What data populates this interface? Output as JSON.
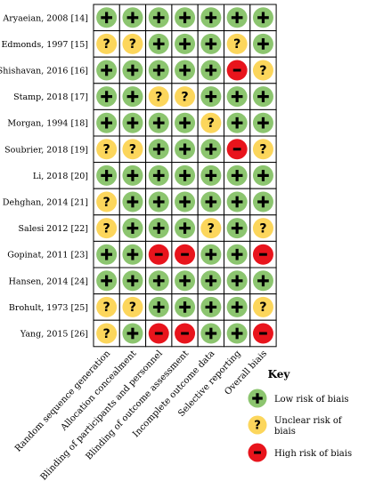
{
  "studies": [
    {
      "label": "Aryaeian, 2008 [14]",
      "ratings": [
        "low",
        "low",
        "low",
        "low",
        "low",
        "low",
        "low"
      ]
    },
    {
      "label": "Edmonds, 1997 [15]",
      "ratings": [
        "unclear",
        "unclear",
        "low",
        "low",
        "low",
        "unclear",
        "low"
      ]
    },
    {
      "label": "Shishavan, 2016 [16]",
      "ratings": [
        "low",
        "low",
        "low",
        "low",
        "low",
        "high",
        "unclear"
      ]
    },
    {
      "label": "Stamp, 2018 [17]",
      "ratings": [
        "low",
        "low",
        "unclear",
        "unclear",
        "low",
        "low",
        "low"
      ]
    },
    {
      "label": "Morgan, 1994 [18]",
      "ratings": [
        "low",
        "low",
        "low",
        "low",
        "unclear",
        "low",
        "low"
      ]
    },
    {
      "label": "Soubrier, 2018 [19]",
      "ratings": [
        "unclear",
        "unclear",
        "low",
        "low",
        "low",
        "high",
        "unclear"
      ]
    },
    {
      "label": "Li, 2018 [20]",
      "ratings": [
        "low",
        "low",
        "low",
        "low",
        "low",
        "low",
        "low"
      ]
    },
    {
      "label": "Dehghan, 2014 [21]",
      "ratings": [
        "unclear",
        "low",
        "low",
        "low",
        "low",
        "low",
        "low"
      ]
    },
    {
      "label": "Salesi 2012 [22]",
      "ratings": [
        "unclear",
        "low",
        "low",
        "low",
        "unclear",
        "low",
        "unclear"
      ]
    },
    {
      "label": "Gopinat, 2011 [23]",
      "ratings": [
        "low",
        "low",
        "high",
        "high",
        "low",
        "low",
        "high"
      ]
    },
    {
      "label": "Hansen, 2014 [24]",
      "ratings": [
        "low",
        "low",
        "low",
        "low",
        "low",
        "low",
        "low"
      ]
    },
    {
      "label": "Brohult, 1973 [25]",
      "ratings": [
        "unclear",
        "unclear",
        "low",
        "low",
        "low",
        "low",
        "unclear"
      ]
    },
    {
      "label": "Yang, 2015 [26]",
      "ratings": [
        "unclear",
        "low",
        "high",
        "high",
        "low",
        "low",
        "high"
      ]
    }
  ],
  "domains": [
    "Random sequence generation",
    "Allocation concealment",
    "Blinding of participants and personnel",
    "Blinding of outcome assessment",
    "Incomplete outcome data",
    "Selective reporting",
    "Overall biais"
  ],
  "symbols": {
    "low": "+",
    "unclear": "?",
    "high": "−"
  },
  "colors": {
    "low": "#8cc56f",
    "unclear": "#fcd65c",
    "high": "#e8141c",
    "border": "#000000"
  },
  "key": {
    "title": "Key",
    "items": [
      {
        "type": "low",
        "text": [
          "Low risk of biais"
        ]
      },
      {
        "type": "unclear",
        "text": [
          "Unclear risk of",
          "biais"
        ]
      },
      {
        "type": "high",
        "text": [
          "High risk of biais"
        ]
      }
    ]
  }
}
